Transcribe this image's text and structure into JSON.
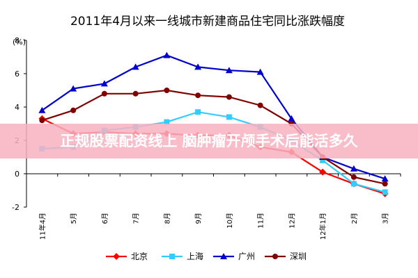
{
  "chart_data": {
    "type": "line",
    "title": "2011年4月以来一线城市新建商品住宅同比涨跌幅度",
    "unit_label": "(%)",
    "ylim": [
      -2,
      8
    ],
    "yticks": [
      -2,
      0,
      2,
      4,
      6,
      8
    ],
    "categories": [
      "11年4月",
      "5月",
      "6月",
      "7月",
      "8月",
      "9月",
      "10月",
      "11月",
      "12月",
      "12年1月",
      "2月",
      "3月"
    ],
    "series": [
      {
        "name": "北京",
        "color": "#ff0000",
        "marker": "diamond",
        "values": [
          3.3,
          2.4,
          2.5,
          2.4,
          2.4,
          2.3,
          2.3,
          1.6,
          1.3,
          0.1,
          -0.6,
          -1.2
        ]
      },
      {
        "name": "上海",
        "color": "#33ccff",
        "marker": "square",
        "values": [
          1.5,
          1.6,
          2.6,
          2.8,
          3.1,
          3.7,
          3.4,
          2.8,
          2.0,
          0.8,
          -0.6,
          -1.1
        ]
      },
      {
        "name": "广州",
        "color": "#0000cc",
        "marker": "triangle",
        "values": [
          3.8,
          5.1,
          5.4,
          6.4,
          7.1,
          6.4,
          6.2,
          6.1,
          3.3,
          1.0,
          0.3,
          -0.3
        ]
      },
      {
        "name": "深圳",
        "color": "#800000",
        "marker": "circle",
        "values": [
          3.2,
          3.8,
          4.8,
          4.8,
          5.0,
          4.7,
          4.6,
          4.1,
          3.0,
          1.0,
          -0.2,
          -0.6
        ]
      }
    ],
    "grid": false,
    "legend_position": "bottom"
  },
  "overlay_banner": "正规股票配资线上  脑肿瘤开颅手术后能活多久"
}
